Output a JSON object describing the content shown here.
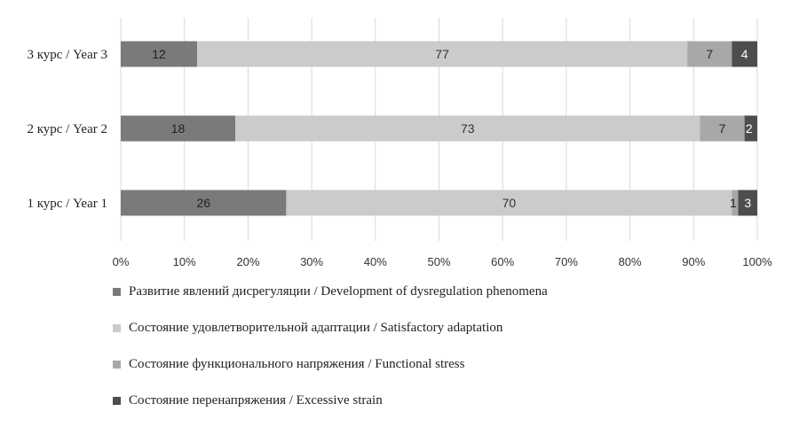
{
  "chart_data": {
    "type": "bar",
    "orientation": "horizontal",
    "stacked": "percent",
    "categories": [
      "3 курс / Year 3",
      "2 курс / Year 2",
      "1 курс / Year 1"
    ],
    "series": [
      {
        "name": "Развитие явлений дисрегуляции / Development of dysregulation phenomena",
        "values": [
          12,
          18,
          26
        ],
        "color": "#7a7a7a",
        "label_color": "#222222"
      },
      {
        "name": "Состояние удовлетворительной адаптации / Satisfactory adaptation",
        "values": [
          77,
          73,
          70
        ],
        "color": "#cbcbcb",
        "label_color": "#333333"
      },
      {
        "name": "Состояние функционального напряжения / Functional stress",
        "values": [
          7,
          7,
          1
        ],
        "color": "#a8a8a8",
        "label_color": "#222222"
      },
      {
        "name": "Состояние перенапряжения / Excessive strain",
        "values": [
          4,
          2,
          3
        ],
        "color": "#4d4d4d",
        "label_color": "#ffffff"
      }
    ],
    "x_ticks": [
      "0%",
      "10%",
      "20%",
      "30%",
      "40%",
      "50%",
      "60%",
      "70%",
      "80%",
      "90%",
      "100%"
    ],
    "xlim": [
      0,
      100
    ],
    "grid": "vertical",
    "legend_position": "bottom"
  }
}
